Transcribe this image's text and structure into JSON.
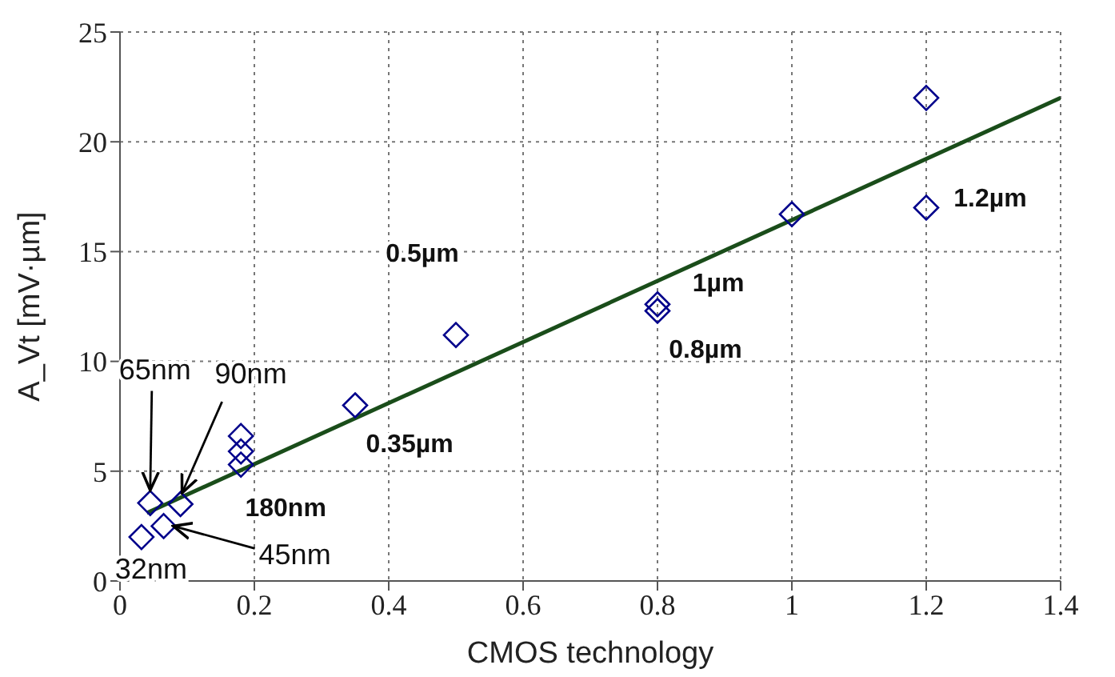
{
  "chart_data": {
    "type": "scatter",
    "xlabel": "CMOS technology",
    "ylabel": "A_Vt [mV·µm]",
    "xlim": [
      0,
      1.4
    ],
    "xticks": [
      0,
      0.2,
      0.4,
      0.6,
      0.8,
      1,
      1.2,
      1.4
    ],
    "ylim": [
      0,
      25
    ],
    "yticks": [
      0,
      5,
      10,
      15,
      20,
      25
    ],
    "grid": true,
    "marker": "diamond",
    "series": [
      {
        "color": "#00008b",
        "x": [
          0.032,
          0.045,
          0.065,
          0.09,
          0.18,
          0.18,
          0.18,
          0.35,
          0.5,
          0.8,
          0.8,
          1.0,
          1.2,
          1.2
        ],
        "values": [
          2.0,
          3.55,
          2.5,
          3.5,
          5.3,
          5.9,
          6.6,
          8.0,
          11.2,
          12.3,
          12.6,
          16.7,
          17.0,
          22.0
        ]
      },
      {
        "type": "line",
        "marker": "none",
        "color": "#1a4d1a",
        "x": [
          0.04,
          1.4
        ],
        "values": [
          3.1,
          22.0
        ]
      }
    ],
    "annotations": [
      {
        "text": "65nm",
        "x": 0.045,
        "y": 3.55
      },
      {
        "text": "90nm",
        "x": 0.09,
        "y": 3.5
      },
      {
        "text": "45nm",
        "x": 0.065,
        "y": 2.5
      },
      {
        "text": "32nm",
        "x": 0.032,
        "y": 2.0
      },
      {
        "text": "180nm",
        "x": 0.18,
        "y": 5.3
      },
      {
        "text": "0.35µm",
        "x": 0.35,
        "y": 8.0
      },
      {
        "text": "0.5µm",
        "x": 0.5,
        "y": 11.2
      },
      {
        "text": "0.8µm",
        "x": 0.8,
        "y": 12.3
      },
      {
        "text": "1µm",
        "x": 1.0,
        "y": 16.7
      },
      {
        "text": "1.2µm",
        "x": 1.2,
        "y": 17.0
      }
    ]
  }
}
